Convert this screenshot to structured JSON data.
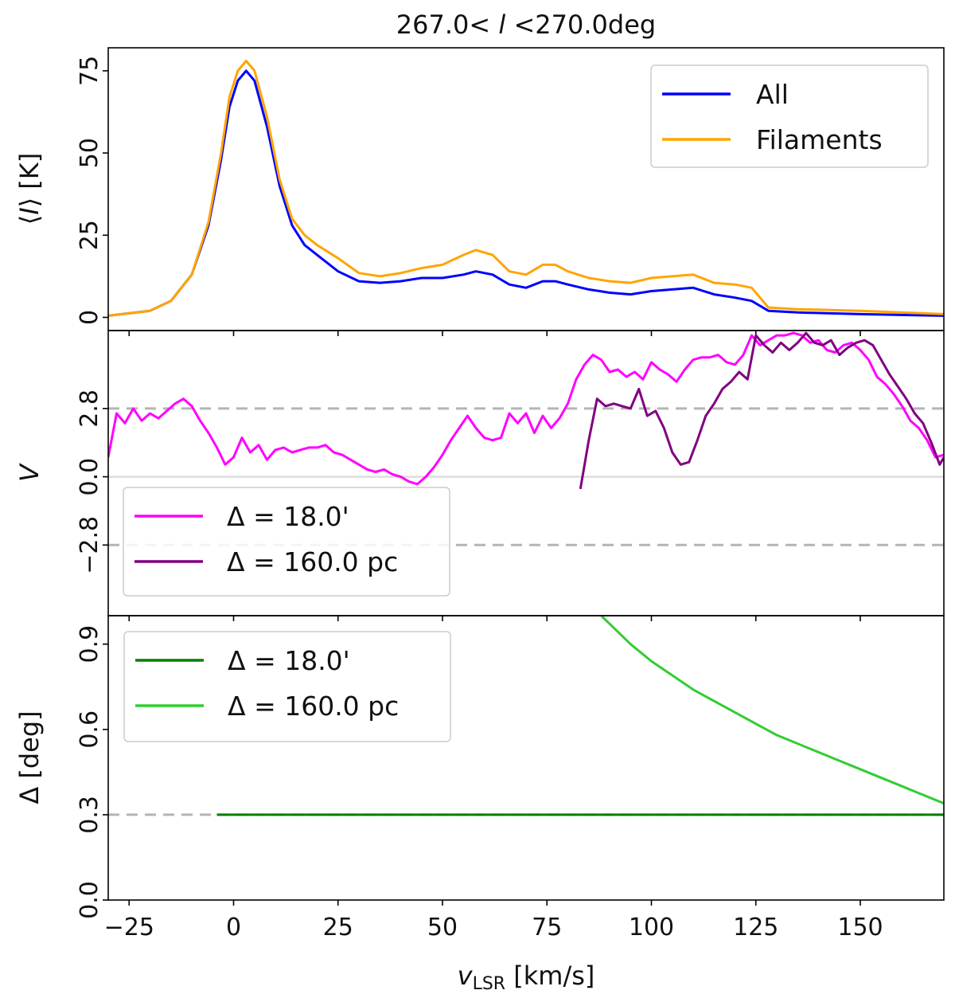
{
  "chart_data": {
    "title": "267.0< l <270.0deg",
    "title_parts": {
      "prefix": "267.0< ",
      "italic": "l",
      "suffix": " <270.0deg"
    },
    "xlabel": "v_LSR [km/s]",
    "xlabel_parts": {
      "main": "v",
      "sub": "LSR",
      "unit": " [km/s]"
    },
    "xlim": [
      -30,
      170
    ],
    "xticks": [
      -25,
      0,
      25,
      50,
      75,
      100,
      125,
      150
    ],
    "panels": [
      {
        "type": "line",
        "ylabel": "⟨I⟩ [K]",
        "ylabel_parts": {
          "open": "⟨",
          "italic": "I",
          "close": "⟩ [K]"
        },
        "ylim": [
          -4,
          82
        ],
        "yticks": [
          0,
          25,
          50,
          75
        ],
        "legend": "top-right",
        "series": [
          {
            "name": "All",
            "color": "#0000ff",
            "x": [
              -30,
              -20,
              -15,
              -10,
              -6,
              -3,
              -1,
              1,
              3,
              5,
              8,
              11,
              14,
              17,
              20,
              25,
              30,
              35,
              40,
              45,
              50,
              55,
              58,
              62,
              66,
              70,
              74,
              77,
              80,
              85,
              90,
              95,
              100,
              105,
              110,
              115,
              120,
              124,
              128,
              135,
              150,
              170
            ],
            "y": [
              0.5,
              2,
              5,
              13,
              28,
              48,
              64,
              72,
              75,
              72,
              58,
              40,
              28,
              22,
              19,
              14,
              11,
              10.5,
              11,
              12,
              12,
              13,
              14,
              13,
              10,
              9,
              11,
              11,
              10,
              8.5,
              7.5,
              7,
              8,
              8.5,
              9,
              7,
              6,
              5,
              2,
              1.5,
              1,
              0.5
            ]
          },
          {
            "name": "Filaments",
            "color": "#ffa500",
            "x": [
              -30,
              -20,
              -15,
              -10,
              -6,
              -3,
              -1,
              1,
              3,
              5,
              8,
              11,
              14,
              17,
              20,
              25,
              30,
              35,
              40,
              45,
              50,
              55,
              58,
              62,
              66,
              70,
              74,
              77,
              80,
              85,
              90,
              95,
              100,
              105,
              110,
              115,
              120,
              124,
              128,
              135,
              150,
              170
            ],
            "y": [
              0.5,
              2,
              5,
              13,
              29,
              50,
              67,
              75,
              78,
              75,
              61,
              42,
              30,
              25,
              22,
              18,
              13.5,
              12.5,
              13.5,
              15,
              16,
              19,
              20.5,
              19,
              14,
              13,
              16,
              16,
              14,
              12,
              11,
              10.5,
              12,
              12.5,
              13,
              10.5,
              10,
              9,
              3,
              2.5,
              2,
              1
            ]
          }
        ]
      },
      {
        "type": "line",
        "ylabel": "V",
        "ylim": [
          -5.7,
          6.0
        ],
        "yticks": [
          -2.8,
          0.0,
          2.8
        ],
        "tick_labels": [
          "−2.8",
          "0.0",
          "2.8"
        ],
        "hlines": [
          {
            "y": 2.8,
            "style": "dashed"
          },
          {
            "y": 0.0,
            "style": "solid"
          },
          {
            "y": -2.8,
            "style": "dashed"
          }
        ],
        "legend": "lower-left",
        "series": [
          {
            "name": "Δ = 18.0'",
            "label_value": "18.0'",
            "color": "#ff00ff",
            "x": [
              -30,
              -28,
              -26,
              -24,
              -22,
              -20,
              -18,
              -16,
              -14,
              -12,
              -10,
              -8,
              -6,
              -4,
              -2,
              0,
              2,
              4,
              6,
              8,
              10,
              12,
              14,
              16,
              18,
              20,
              22,
              24,
              26,
              28,
              30,
              32,
              34,
              36,
              38,
              40,
              42,
              44,
              46,
              48,
              50,
              52,
              54,
              56,
              58,
              60,
              62,
              64,
              66,
              68,
              70,
              72,
              74,
              76,
              78,
              80,
              82,
              84,
              86,
              88,
              90,
              92,
              94,
              96,
              98,
              100,
              102,
              104,
              106,
              108,
              110,
              112,
              114,
              116,
              118,
              120,
              122,
              124,
              126,
              128,
              130,
              132,
              134,
              136,
              138,
              140,
              142,
              144,
              146,
              148,
              150,
              152,
              154,
              156,
              158,
              160,
              162,
              164,
              166,
              168,
              170
            ],
            "y": [
              0.8,
              2.6,
              2.2,
              2.8,
              2.3,
              2.6,
              2.4,
              2.7,
              3.0,
              3.2,
              2.9,
              2.3,
              1.8,
              1.2,
              0.5,
              0.8,
              1.6,
              1.0,
              1.3,
              0.7,
              1.1,
              1.2,
              1.0,
              1.1,
              1.2,
              1.2,
              1.3,
              1.0,
              0.9,
              0.7,
              0.5,
              0.3,
              0.2,
              0.3,
              0.1,
              0.0,
              -0.2,
              -0.3,
              0.0,
              0.4,
              0.9,
              1.5,
              2.0,
              2.5,
              2.0,
              1.6,
              1.5,
              1.6,
              2.6,
              2.2,
              2.6,
              1.8,
              2.5,
              2.0,
              2.4,
              3.0,
              4.0,
              4.6,
              5.0,
              4.8,
              4.3,
              4.4,
              4.1,
              4.3,
              4.0,
              4.7,
              4.4,
              4.2,
              3.9,
              4.4,
              4.8,
              4.9,
              4.9,
              5.0,
              4.7,
              4.6,
              5.0,
              5.8,
              5.4,
              5.6,
              5.8,
              5.8,
              5.9,
              5.8,
              5.5,
              5.6,
              5.2,
              5.1,
              5.4,
              5.5,
              5.2,
              4.8,
              4.1,
              3.8,
              3.4,
              2.9,
              2.3,
              2.0,
              1.5,
              0.8,
              0.9
            ]
          },
          {
            "name": "Δ = 160.0 pc",
            "label_value": "160.0 pc",
            "color": "#800080",
            "x": [
              83,
              85,
              87,
              89,
              91,
              93,
              95,
              97,
              99,
              101,
              103,
              105,
              107,
              109,
              111,
              113,
              115,
              117,
              119,
              121,
              123,
              125,
              127,
              129,
              131,
              133,
              135,
              137,
              139,
              141,
              143,
              145,
              147,
              149,
              151,
              153,
              155,
              157,
              159,
              161,
              163,
              165,
              167,
              169,
              170
            ],
            "y": [
              -0.5,
              1.5,
              3.2,
              2.9,
              3.0,
              2.9,
              2.8,
              3.6,
              2.5,
              2.7,
              2.0,
              1.0,
              0.5,
              0.6,
              1.5,
              2.5,
              3.0,
              3.6,
              3.9,
              4.3,
              4.0,
              5.8,
              5.4,
              5.1,
              5.5,
              5.2,
              5.5,
              5.9,
              5.5,
              5.4,
              5.6,
              5.0,
              5.3,
              5.5,
              5.6,
              5.4,
              4.8,
              4.2,
              3.7,
              3.2,
              2.6,
              2.2,
              1.4,
              0.5,
              0.8
            ]
          }
        ]
      },
      {
        "type": "line",
        "ylabel": "Δ [deg]",
        "ylim": [
          0.0,
          1.0
        ],
        "yticks": [
          0.0,
          0.3,
          0.6,
          0.9
        ],
        "tick_labels": [
          "0.0",
          "0.3",
          "0.6",
          "0.9"
        ],
        "hlines": [
          {
            "y": 0.3,
            "style": "dashed"
          }
        ],
        "legend": "top-left",
        "series": [
          {
            "name": "Δ = 18.0'",
            "label_value": "18.0'",
            "color": "#008000",
            "x": [
              -4,
              170
            ],
            "y": [
              0.3,
              0.3
            ]
          },
          {
            "name": "Δ = 160.0 pc",
            "label_value": "160.0 pc",
            "color": "#32cd32",
            "x": [
              88,
              95,
              100,
              110,
              120,
              130,
              140,
              150,
              160,
              170
            ],
            "y": [
              1.0,
              0.9,
              0.84,
              0.74,
              0.66,
              0.58,
              0.52,
              0.46,
              0.4,
              0.34
            ]
          }
        ]
      }
    ]
  }
}
